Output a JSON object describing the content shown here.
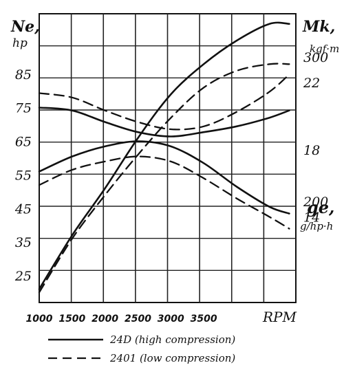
{
  "chart_data": {
    "type": "line",
    "x_axis": {
      "label": "RPM",
      "ticks": [
        1000,
        1500,
        2000,
        2500,
        3000,
        3500
      ],
      "range": [
        1000,
        4900
      ]
    },
    "left_axis": {
      "label": "Ne,",
      "unit": "hp",
      "ticks": [
        25,
        35,
        45,
        55,
        65,
        75,
        85
      ],
      "range": [
        17,
        103
      ]
    },
    "right_axis_torque": {
      "label": "Mk,",
      "unit": "kgf·m",
      "ticks": [
        14,
        18,
        22
      ],
      "range": [
        8.9,
        26.1
      ]
    },
    "right_axis_consumption": {
      "label": "ge,",
      "unit": "g/hp·h",
      "ticks": [
        200,
        300
      ],
      "range": [
        130,
        330
      ]
    },
    "legend": [
      {
        "style": "solid",
        "label": "24D (high compression)"
      },
      {
        "style": "dashed",
        "label": "2401 (low compression)"
      }
    ],
    "series": [
      {
        "name": "24D (high compression)",
        "quantity": "power",
        "axis": "left",
        "style": "solid",
        "x": [
          1000,
          1500,
          2000,
          2500,
          3000,
          3500,
          4000,
          4500,
          4800
        ],
        "y": [
          21,
          37,
          51,
          66,
          79,
          88,
          95,
          100,
          100
        ]
      },
      {
        "name": "2401 (low compression)",
        "quantity": "power",
        "axis": "left",
        "style": "dashed",
        "x": [
          1000,
          1500,
          2000,
          2500,
          3000,
          3500,
          4000,
          4500,
          4800
        ],
        "y": [
          20,
          36,
          49,
          61,
          72,
          81,
          86,
          88,
          88
        ]
      },
      {
        "name": "24D (high compression)",
        "quantity": "torque",
        "axis": "right_torque",
        "style": "solid",
        "x": [
          1000,
          1500,
          2000,
          2500,
          3000,
          3500,
          4000,
          4500,
          4800
        ],
        "y": [
          16.7,
          17.6,
          18.2,
          18.5,
          18.2,
          17.2,
          15.8,
          14.6,
          14.2
        ]
      },
      {
        "name": "2401 (low compression)",
        "quantity": "torque",
        "axis": "right_torque",
        "style": "dashed",
        "x": [
          1000,
          1500,
          2000,
          2500,
          3000,
          3500,
          4000,
          4500,
          4800
        ],
        "y": [
          15.9,
          16.8,
          17.3,
          17.6,
          17.3,
          16.3,
          15.1,
          14.0,
          13.3
        ]
      },
      {
        "name": "24D (high compression)",
        "quantity": "specific fuel consumption",
        "axis": "right_consumption",
        "style": "solid",
        "x": [
          1000,
          1500,
          2000,
          2500,
          3000,
          3500,
          4000,
          4500,
          4800
        ],
        "y": [
          265,
          263,
          255,
          248,
          245,
          248,
          252,
          258,
          263
        ]
      },
      {
        "name": "2401 (low compression)",
        "quantity": "specific fuel consumption",
        "axis": "right_consumption",
        "style": "dashed",
        "x": [
          1000,
          1500,
          2000,
          2500,
          3000,
          3500,
          4000,
          4500,
          4800
        ],
        "y": [
          275,
          272,
          263,
          255,
          250,
          252,
          262,
          276,
          288
        ]
      }
    ],
    "grid": true
  }
}
